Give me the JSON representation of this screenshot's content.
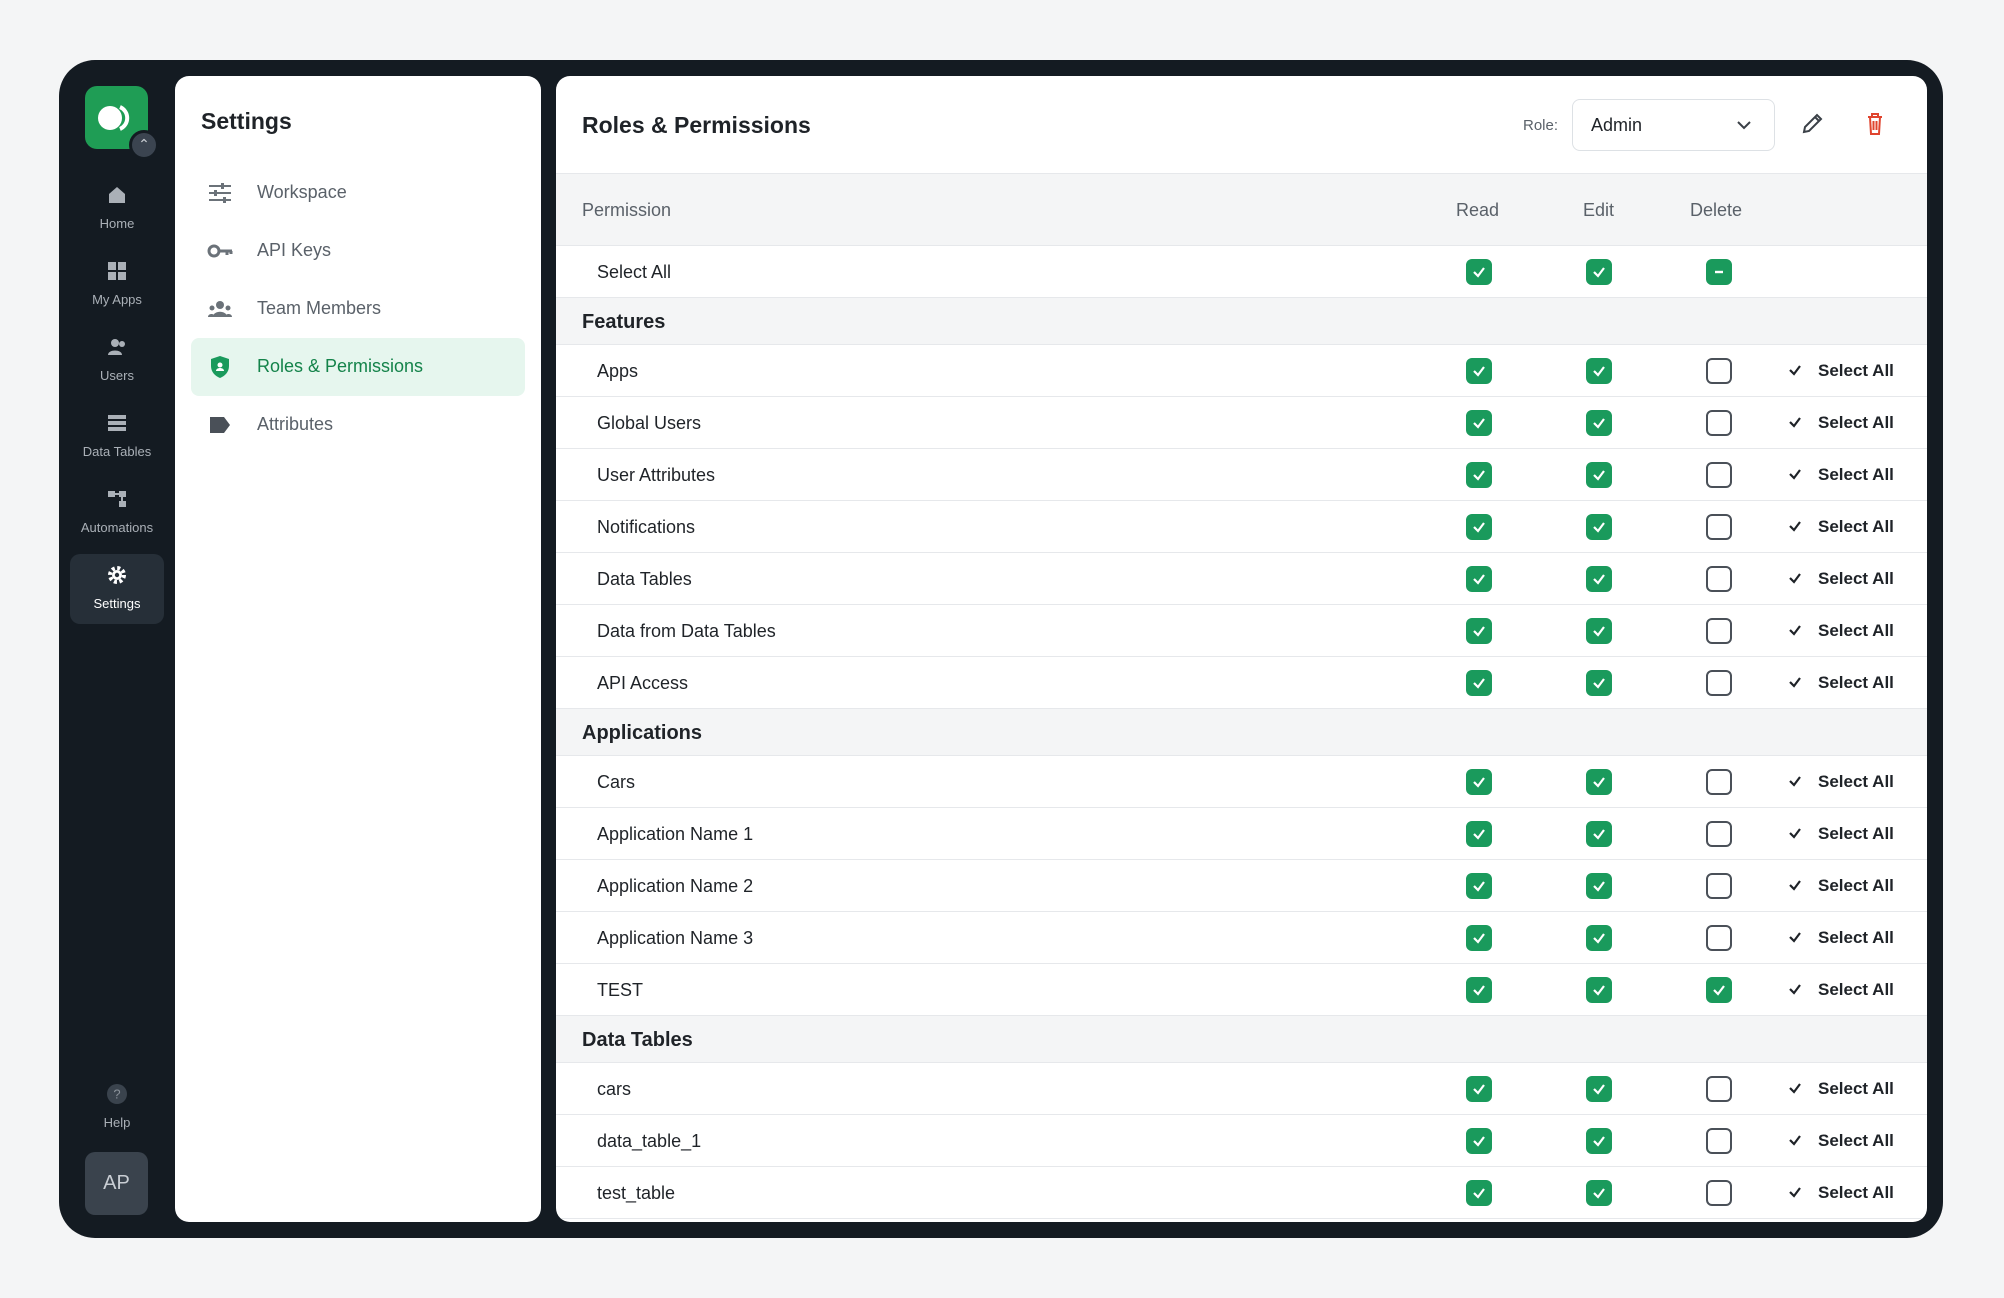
{
  "rail": {
    "logo_badge_icon": "chevron-updown-icon",
    "items": [
      {
        "label": "Home",
        "icon": "home-icon"
      },
      {
        "label": "My Apps",
        "icon": "apps-icon"
      },
      {
        "label": "Users",
        "icon": "users-icon"
      },
      {
        "label": "Data Tables",
        "icon": "table-icon"
      },
      {
        "label": "Automations",
        "icon": "automation-icon"
      },
      {
        "label": "Settings",
        "icon": "gear-icon"
      },
      {
        "label": "Help",
        "icon": "help-icon"
      }
    ],
    "avatar": "AP"
  },
  "settings": {
    "title": "Settings",
    "items": [
      {
        "label": "Workspace",
        "icon": "sliders-icon"
      },
      {
        "label": "API Keys",
        "icon": "key-icon"
      },
      {
        "label": "Team Members",
        "icon": "team-icon"
      },
      {
        "label": "Roles & Permissions",
        "icon": "shield-icon"
      },
      {
        "label": "Attributes",
        "icon": "tag-icon"
      }
    ]
  },
  "main": {
    "title": "Roles & Permissions",
    "role_label": "Role:",
    "role_value": "Admin",
    "columns": {
      "permission": "Permission",
      "read": "Read",
      "edit": "Edit",
      "delete": "Delete"
    },
    "select_all_row": {
      "label": "Select All",
      "read": "on",
      "edit": "on",
      "delete": "mixed"
    },
    "row_action_label": "Select All",
    "groups": [
      {
        "name": "Features",
        "rows": [
          {
            "name": "Apps",
            "read": true,
            "edit": true,
            "delete": false
          },
          {
            "name": "Global Users",
            "read": true,
            "edit": true,
            "delete": false
          },
          {
            "name": "User Attributes",
            "read": true,
            "edit": true,
            "delete": false
          },
          {
            "name": "Notifications",
            "read": true,
            "edit": true,
            "delete": false
          },
          {
            "name": "Data Tables",
            "read": true,
            "edit": true,
            "delete": false
          },
          {
            "name": "Data from Data Tables",
            "read": true,
            "edit": true,
            "delete": false
          },
          {
            "name": "API Access",
            "read": true,
            "edit": true,
            "delete": false
          }
        ]
      },
      {
        "name": "Applications",
        "rows": [
          {
            "name": "Cars",
            "read": true,
            "edit": true,
            "delete": false
          },
          {
            "name": "Application Name 1",
            "read": true,
            "edit": true,
            "delete": false
          },
          {
            "name": "Application Name 2",
            "read": true,
            "edit": true,
            "delete": false
          },
          {
            "name": "Application Name 3",
            "read": true,
            "edit": true,
            "delete": false
          },
          {
            "name": "TEST",
            "read": true,
            "edit": true,
            "delete": true
          }
        ]
      },
      {
        "name": "Data Tables",
        "rows": [
          {
            "name": "cars",
            "read": true,
            "edit": true,
            "delete": false
          },
          {
            "name": "data_table_1",
            "read": true,
            "edit": true,
            "delete": false
          },
          {
            "name": "test_table",
            "read": true,
            "edit": true,
            "delete": false
          }
        ]
      }
    ]
  },
  "colors": {
    "accent": "#1a9a5c",
    "danger": "#e0442e",
    "rail": "#141b22"
  }
}
